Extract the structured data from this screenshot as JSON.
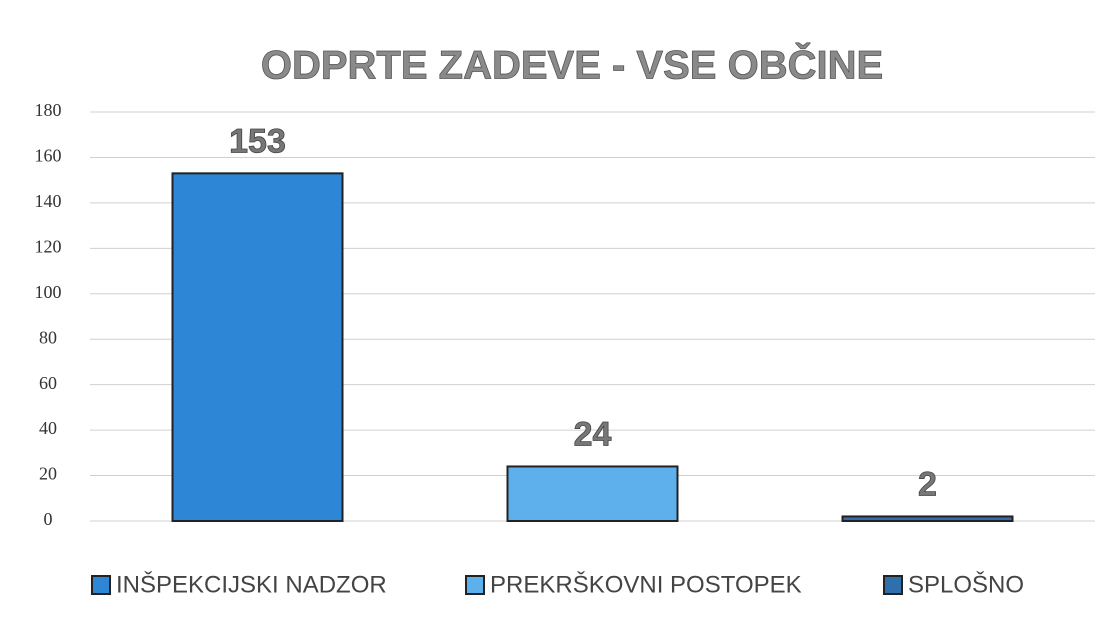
{
  "chart_data": {
    "type": "bar",
    "title": "ODPRTE ZADEVE - VSE OBČINE",
    "series": [
      {
        "name": "INŠPEKCIJSKI NADZOR",
        "color": "#2e86d6",
        "values": [
          153
        ]
      },
      {
        "name": "PREKRŠKOVNI POSTOPEK",
        "color": "#5eb0ec",
        "values": [
          24
        ]
      },
      {
        "name": "SPLOŠNO",
        "color": "#2f6fae",
        "values": [
          2
        ]
      }
    ],
    "ylim": [
      0,
      180
    ],
    "yticks": [
      0,
      20,
      40,
      60,
      80,
      100,
      120,
      140,
      160,
      180
    ],
    "grid": true
  }
}
